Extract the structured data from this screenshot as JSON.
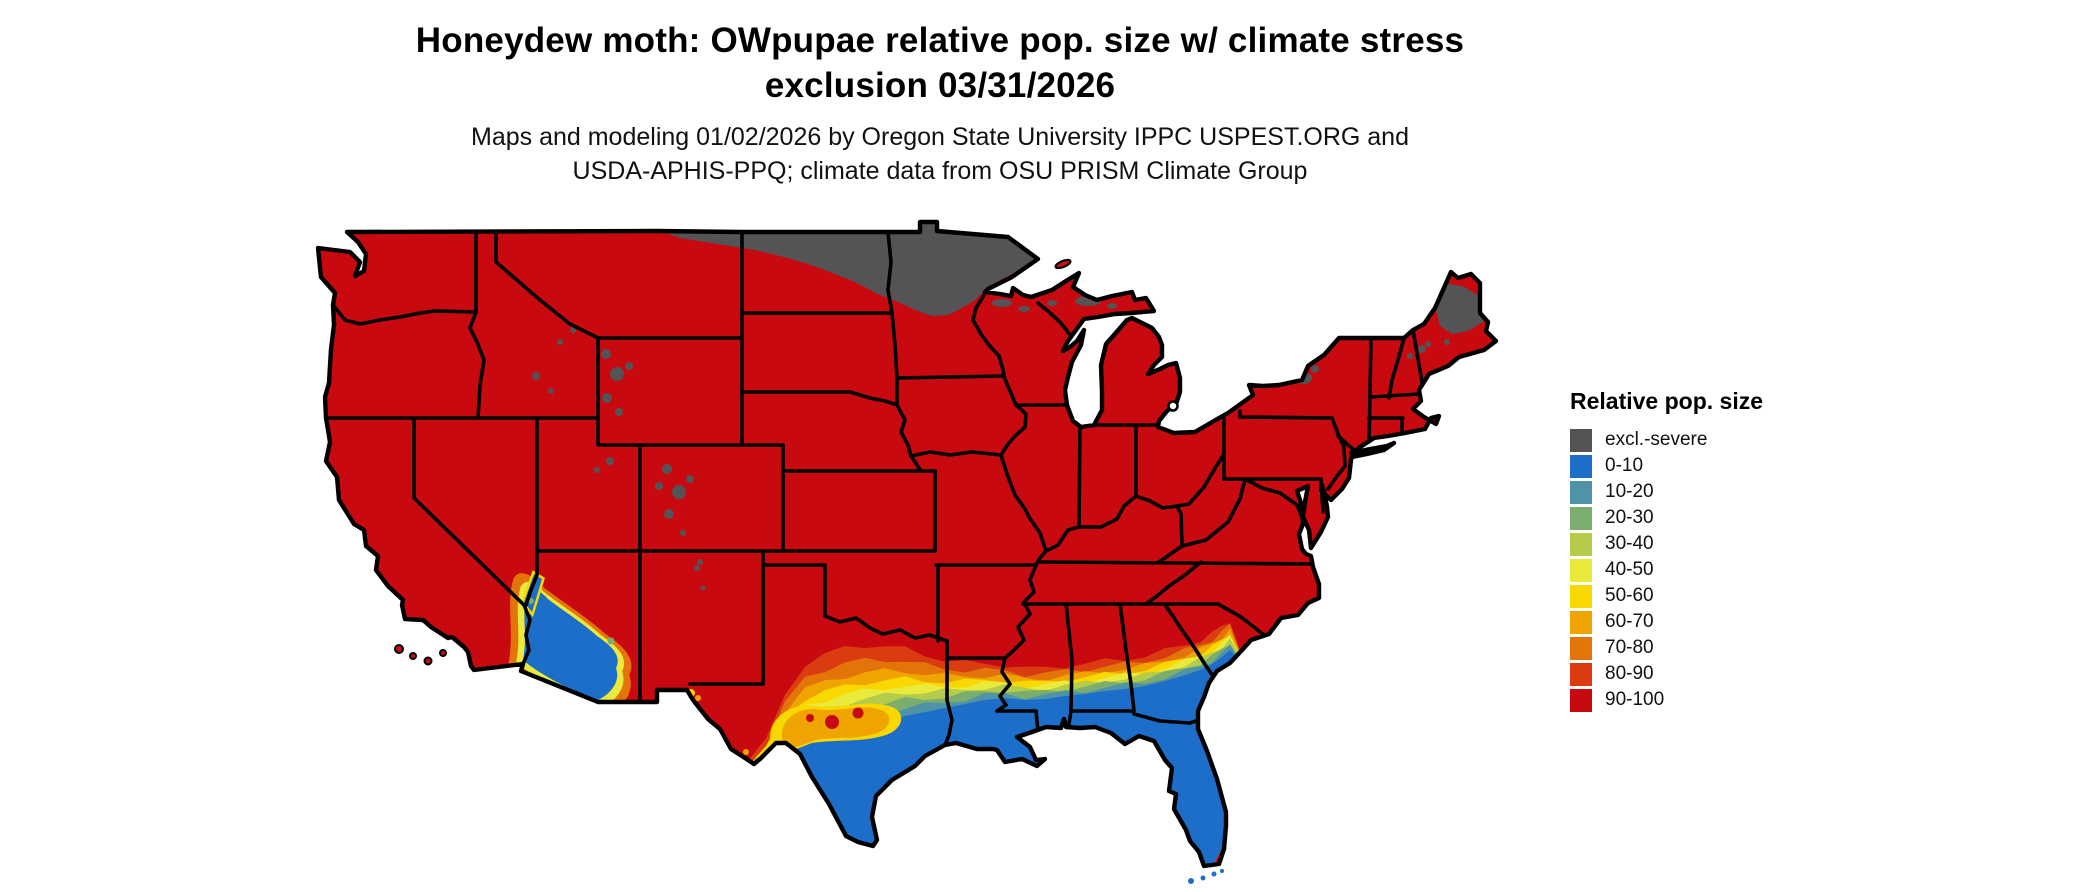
{
  "header": {
    "title_line1": "Honeydew moth: OWpupae relative pop. size w/ climate stress",
    "title_line2": "exclusion 03/31/2026",
    "subtitle_line1": "Maps and modeling 01/02/2026 by Oregon State University IPPC USPEST.ORG and",
    "subtitle_line2": "USDA-APHIS-PPQ; climate data from OSU PRISM Climate Group"
  },
  "legend": {
    "title": "Relative pop. size",
    "items": [
      {
        "key": "excl",
        "label": "excl.-severe",
        "color": "#545457"
      },
      {
        "key": "b0_10",
        "label": "0-10",
        "color": "#1C6EC9"
      },
      {
        "key": "b10_20",
        "label": "10-20",
        "color": "#4E93A6"
      },
      {
        "key": "b20_30",
        "label": "20-30",
        "color": "#7BAE6E"
      },
      {
        "key": "b30_40",
        "label": "30-40",
        "color": "#B4CB4C"
      },
      {
        "key": "b40_50",
        "label": "40-50",
        "color": "#E9EA3C"
      },
      {
        "key": "b50_60",
        "label": "50-60",
        "color": "#F8D800"
      },
      {
        "key": "b60_70",
        "label": "60-70",
        "color": "#F0A400"
      },
      {
        "key": "b70_80",
        "label": "70-80",
        "color": "#E37409"
      },
      {
        "key": "b80_90",
        "label": "80-90",
        "color": "#DA3B10"
      },
      {
        "key": "b90_100",
        "label": "90-100",
        "color": "#C8090F"
      }
    ]
  },
  "map": {
    "region": "Contiguous United States",
    "dominant_category": "90-100",
    "regions": [
      {
        "category": "excl.-severe",
        "where": "northern North Dakota and northern Minnesota, northern Maine, high Rockies of Wyoming/Colorado/Utah, upper Michigan specks"
      },
      {
        "category": "0-10",
        "where": "south Texas, Gulf Coast strip, all of Florida, coastal Georgia, lower Colorado River desert of Arizona/California"
      },
      {
        "category": "transition bands 10-90",
        "where": "belt across central Texas and the Deep South between the blue coast and red interior"
      }
    ]
  }
}
